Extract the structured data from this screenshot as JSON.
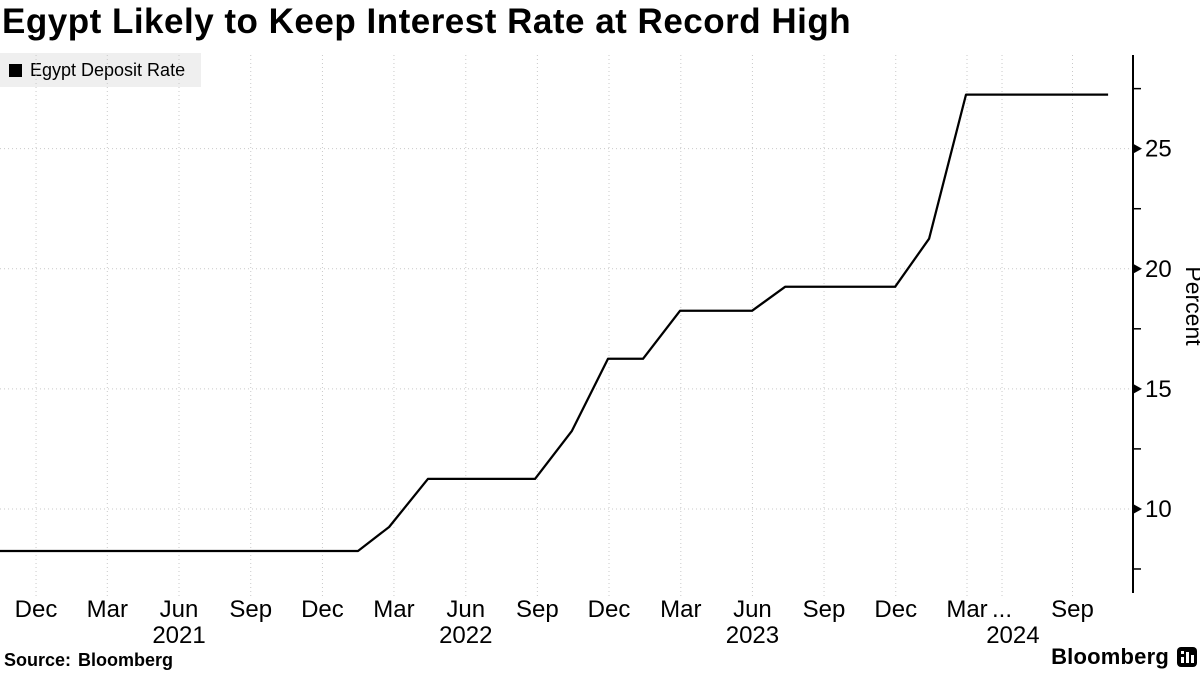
{
  "header": {
    "title": "Egypt Likely to Keep Interest Rate at Record High"
  },
  "legend": {
    "series_label": "Egypt Deposit Rate",
    "swatch_color": "#000000"
  },
  "footer": {
    "source_label": "Source:",
    "source_value": "Bloomberg",
    "brand": "Bloomberg"
  },
  "chart_data": {
    "type": "line",
    "title": "Egypt Likely to Keep Interest Rate at Record High",
    "ylabel": "Percent",
    "grid": "dotted",
    "grid_color": "#c9c9c9",
    "axis_color": "#000000",
    "legend_position": "top-left",
    "ylim": [
      6.5,
      28.9
    ],
    "y_major_ticks": [
      10,
      15,
      20,
      25
    ],
    "y_minor_ticks": [
      7.5,
      12.5,
      17.5,
      22.5,
      27.5
    ],
    "x_axis_unit": "fraction of plot width (Oct 2020 - Oct 2024)",
    "x_ticks": [
      {
        "x": 0.0318,
        "label": "Dec"
      },
      {
        "x": 0.0947,
        "label": "Mar"
      },
      {
        "x": 0.158,
        "label": "Jun"
      },
      {
        "x": 0.2213,
        "label": "Sep"
      },
      {
        "x": 0.2846,
        "label": "Dec"
      },
      {
        "x": 0.3477,
        "label": "Mar"
      },
      {
        "x": 0.4111,
        "label": "Jun"
      },
      {
        "x": 0.4743,
        "label": "Sep"
      },
      {
        "x": 0.5375,
        "label": "Dec"
      },
      {
        "x": 0.6009,
        "label": "Mar"
      },
      {
        "x": 0.6641,
        "label": "Jun"
      },
      {
        "x": 0.7273,
        "label": "Sep"
      },
      {
        "x": 0.7906,
        "label": "Dec"
      },
      {
        "x": 0.8535,
        "label": "Mar"
      },
      {
        "x": 0.8844,
        "label": "..."
      },
      {
        "x": 0.9466,
        "label": "Sep"
      }
    ],
    "x_year_labels": [
      {
        "x": 0.158,
        "label": "2021"
      },
      {
        "x": 0.4111,
        "label": "2022"
      },
      {
        "x": 0.6641,
        "label": "2023"
      },
      {
        "x": 0.894,
        "label": "2024"
      }
    ],
    "series": [
      {
        "name": "Egypt Deposit Rate",
        "color": "#000000",
        "points": [
          [
            0.0,
            8.25
          ],
          [
            0.316,
            8.25
          ],
          [
            0.3434,
            9.25
          ],
          [
            0.3777,
            11.25
          ],
          [
            0.4722,
            11.25
          ],
          [
            0.5048,
            13.25
          ],
          [
            0.5366,
            16.25
          ],
          [
            0.5675,
            16.25
          ],
          [
            0.6002,
            18.25
          ],
          [
            0.6637,
            18.25
          ],
          [
            0.6929,
            19.25
          ],
          [
            0.79,
            19.25
          ],
          [
            0.82,
            21.25
          ],
          [
            0.8526,
            27.25
          ],
          [
            0.978,
            27.25
          ]
        ]
      }
    ]
  }
}
